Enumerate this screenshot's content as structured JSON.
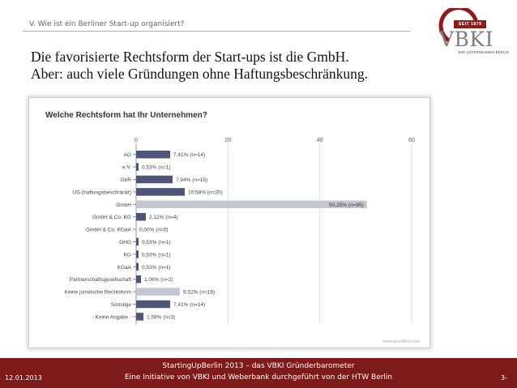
{
  "slide": {
    "section_label": "V. Wie ist ein Berliner Start-up organisiert?",
    "headline_line1": "Die favorisierte Rechtsform der Start-ups ist die GmbH.",
    "headline_line2": "Aber: auch viele Gründungen ohne Haftungsbeschränkung.",
    "logo": {
      "since": "SEIT 1879",
      "name": "VBKI",
      "tagline": "WIR UNTERNEHMEN BERLIN",
      "color": "#8e1a1a"
    },
    "footer": {
      "line1": "StartingUpBerlin 2013 – das VBKI Gründerbarometer",
      "line2": "Eine Initiative von VBKI und Weberbank durchgeführt von der HTW Berlin",
      "date": "12.01.2013",
      "page": "3-",
      "color": "#7d1a1a"
    }
  },
  "chart_data": {
    "type": "bar",
    "orientation": "horizontal",
    "title": "Welche Rechtsform hat Ihr Unternehmen?",
    "watermark": "www.questfox.com",
    "xlim": [
      0,
      60
    ],
    "xticks": [
      0,
      20,
      40,
      60
    ],
    "grid": true,
    "categories": [
      "AG",
      "e.V.",
      "GbR",
      "UG (haftungsbeschränkt)",
      "GmbH",
      "GmbH & Co. KG",
      "GmbH & Co. KGaA",
      "OHG",
      "KG",
      "KGaA",
      "Partnerschaftsgesellschaft",
      "Keine juristische Rechtsform",
      "Sonstige",
      "- Keine Angabe -"
    ],
    "values": [
      7.41,
      0.53,
      7.94,
      10.58,
      50.25,
      2.12,
      0.0,
      0.53,
      0.53,
      0.53,
      1.06,
      9.52,
      7.41,
      1.59
    ],
    "value_labels": [
      "7,41% (n=14)",
      "0,53% (n=1)",
      "7,94% (n=15)",
      "10,58% (n=20)",
      "50,25% (n=95)",
      "2,12% (n=4)",
      "0,00% (n=0)",
      "0,53% (n=1)",
      "0,53% (n=1)",
      "0,53% (n=1)",
      "1,06% (n=2)",
      "9,52% (n=18)",
      "7,41% (n=14)",
      "1,59% (n=3)"
    ],
    "highlight": [
      false,
      false,
      false,
      false,
      true,
      false,
      false,
      false,
      false,
      false,
      false,
      true,
      false,
      false
    ],
    "bar_color": "#4f5578",
    "highlight_color": "#c5c7d0"
  }
}
